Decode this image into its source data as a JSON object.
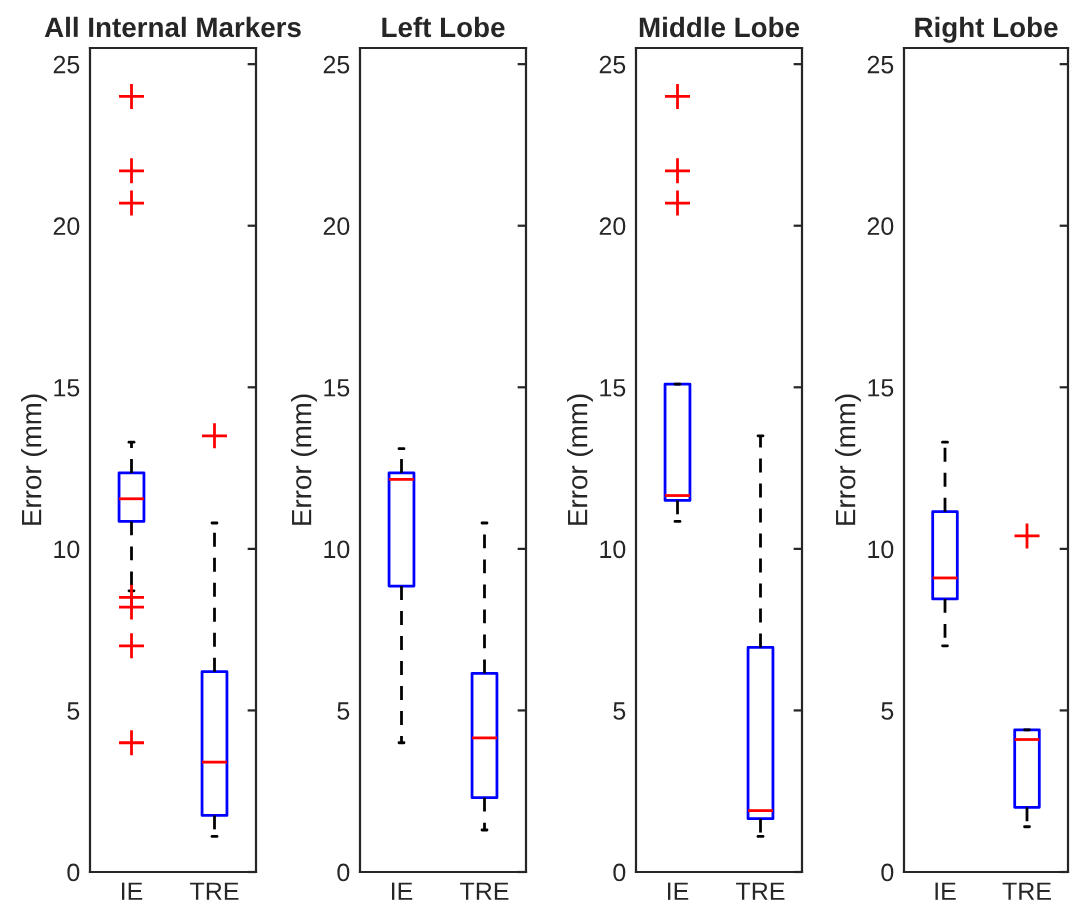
{
  "chart_data": [
    {
      "type": "box",
      "title": "All Internal Markers",
      "ylabel": "Error (mm)",
      "categories": [
        "IE",
        "TRE"
      ],
      "ylim": [
        0,
        25.5
      ],
      "yticks": [
        0,
        5,
        10,
        15,
        20,
        25
      ],
      "boxes": [
        {
          "low": 8.7,
          "q1": 10.85,
          "median": 11.55,
          "q3": 12.35,
          "high": 13.3,
          "outliers": [
            24.0,
            21.7,
            20.7,
            8.5,
            8.2,
            7.0,
            4.0
          ]
        },
        {
          "low": 1.1,
          "q1": 1.75,
          "median": 3.4,
          "q3": 6.2,
          "high": 10.8,
          "outliers": [
            13.5
          ]
        }
      ]
    },
    {
      "type": "box",
      "title": "Left Lobe",
      "ylabel": "Error (mm)",
      "categories": [
        "IE",
        "TRE"
      ],
      "ylim": [
        0,
        25.5
      ],
      "yticks": [
        0,
        5,
        10,
        15,
        20,
        25
      ],
      "boxes": [
        {
          "low": 4.0,
          "q1": 8.85,
          "median": 12.15,
          "q3": 12.35,
          "high": 13.1
        },
        {
          "low": 1.3,
          "q1": 2.3,
          "median": 4.15,
          "q3": 6.15,
          "high": 10.8
        }
      ]
    },
    {
      "type": "box",
      "title": "Middle Lobe",
      "ylabel": "Error (mm)",
      "categories": [
        "IE",
        "TRE"
      ],
      "ylim": [
        0,
        25.5
      ],
      "yticks": [
        0,
        5,
        10,
        15,
        20,
        25
      ],
      "boxes": [
        {
          "low": 10.85,
          "q1": 11.5,
          "median": 11.65,
          "q3": 15.1,
          "high": 15.1,
          "outliers": [
            24.0,
            21.7,
            20.7
          ]
        },
        {
          "low": 1.1,
          "q1": 1.65,
          "median": 1.9,
          "q3": 6.95,
          "high": 13.5
        }
      ]
    },
    {
      "type": "box",
      "title": "Right Lobe",
      "ylabel": "Error (mm)",
      "categories": [
        "IE",
        "TRE"
      ],
      "ylim": [
        0,
        25.5
      ],
      "yticks": [
        0,
        5,
        10,
        15,
        20,
        25
      ],
      "boxes": [
        {
          "low": 7.0,
          "q1": 8.45,
          "median": 9.1,
          "q3": 11.15,
          "high": 13.3
        },
        {
          "low": 1.4,
          "q1": 2.0,
          "median": 4.1,
          "q3": 4.4,
          "high": 4.4,
          "outliers": [
            10.4
          ]
        }
      ]
    }
  ]
}
